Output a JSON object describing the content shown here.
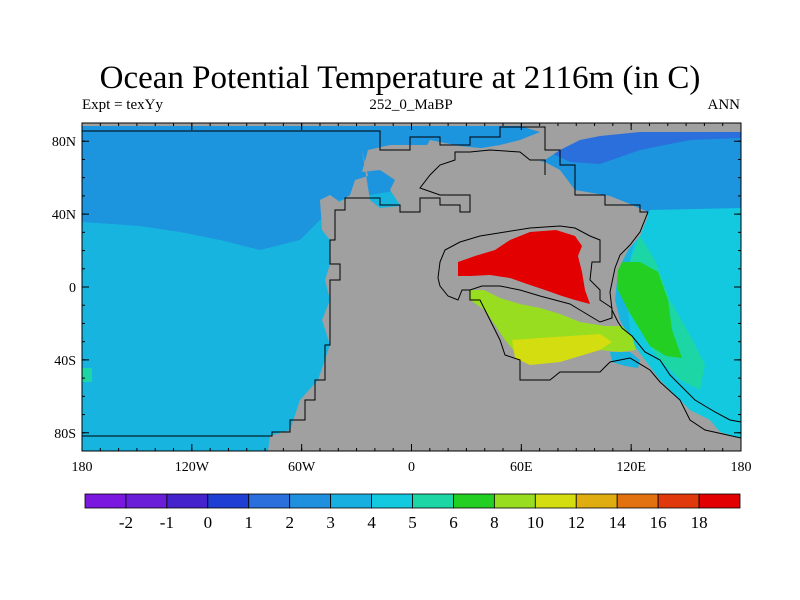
{
  "title": "Ocean Potential Temperature at 2116m (in C)",
  "subtitle_left": "Expt = texYy",
  "subtitle_center": "252_0_MaBP",
  "subtitle_right": "ANN",
  "x_ticks": [
    {
      "label": "180",
      "value": -180
    },
    {
      "label": "120W",
      "value": -120
    },
    {
      "label": "60W",
      "value": -60
    },
    {
      "label": "0",
      "value": 0
    },
    {
      "label": "60E",
      "value": 60
    },
    {
      "label": "120E",
      "value": 120
    },
    {
      "label": "180",
      "value": 180
    }
  ],
  "y_ticks": [
    {
      "label": "80N",
      "value": 80
    },
    {
      "label": "40N",
      "value": 40
    },
    {
      "label": "0",
      "value": 0
    },
    {
      "label": "40S",
      "value": -40
    },
    {
      "label": "80S",
      "value": -80
    }
  ],
  "colorbar": {
    "colors": [
      "#7a18e0",
      "#6a1ed8",
      "#4422cc",
      "#1f3fd4",
      "#2a6fdc",
      "#1f90dd",
      "#17aee0",
      "#12c9df",
      "#1dd6a6",
      "#22cf22",
      "#98dd20",
      "#d4dd10",
      "#e0ad10",
      "#e27210",
      "#e03a0c",
      "#e30000"
    ],
    "labels": [
      "-2",
      "-1",
      "0",
      "1",
      "2",
      "3",
      "4",
      "5",
      "6",
      "8",
      "10",
      "12",
      "14",
      "16",
      "18"
    ]
  },
  "land_color": "#a0a0a0"
}
